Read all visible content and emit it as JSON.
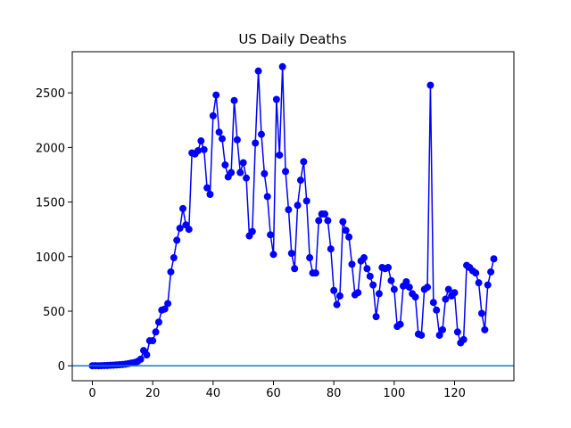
{
  "chart_data": {
    "type": "line",
    "title": "US Daily Deaths",
    "x": [
      0,
      1,
      2,
      3,
      4,
      5,
      6,
      7,
      8,
      9,
      10,
      11,
      12,
      13,
      14,
      15,
      16,
      17,
      18,
      19,
      20,
      21,
      22,
      23,
      24,
      25,
      26,
      27,
      28,
      29,
      30,
      31,
      32,
      33,
      34,
      35,
      36,
      37,
      38,
      39,
      40,
      41,
      42,
      43,
      44,
      45,
      46,
      47,
      48,
      49,
      50,
      51,
      52,
      53,
      54,
      55,
      56,
      57,
      58,
      59,
      60,
      61,
      62,
      63,
      64,
      65,
      66,
      67,
      68,
      69,
      70,
      71,
      72,
      73,
      74,
      75,
      76,
      77,
      78,
      79,
      80,
      81,
      82,
      83,
      84,
      85,
      86,
      87,
      88,
      89,
      90,
      91,
      92,
      93,
      94,
      95,
      96,
      97,
      98,
      99,
      100,
      101,
      102,
      103,
      104,
      105,
      106,
      107,
      108,
      109,
      110,
      111,
      112,
      113,
      114,
      115,
      116,
      117,
      118,
      119,
      120,
      121,
      122,
      123,
      124,
      125,
      126,
      127,
      128,
      129,
      130,
      131,
      132,
      133
    ],
    "values": [
      0,
      1,
      0,
      1,
      2,
      3,
      5,
      6,
      8,
      10,
      12,
      15,
      20,
      25,
      30,
      40,
      60,
      140,
      100,
      230,
      230,
      310,
      400,
      510,
      520,
      570,
      860,
      990,
      1150,
      1260,
      1440,
      1290,
      1250,
      1950,
      1940,
      1970,
      2060,
      1980,
      1630,
      1570,
      2290,
      2480,
      2140,
      2080,
      1840,
      1730,
      1770,
      2430,
      2070,
      1770,
      1860,
      1720,
      1190,
      1230,
      2040,
      2700,
      2120,
      1760,
      1550,
      1200,
      1020,
      2440,
      1930,
      2740,
      1780,
      1430,
      1030,
      890,
      1470,
      1700,
      1870,
      1510,
      990,
      850,
      850,
      1330,
      1390,
      1390,
      1330,
      1070,
      690,
      560,
      640,
      1320,
      1240,
      1180,
      930,
      650,
      670,
      960,
      990,
      890,
      820,
      740,
      450,
      660,
      900,
      890,
      900,
      780,
      700,
      360,
      380,
      730,
      770,
      720,
      660,
      630,
      290,
      280,
      700,
      720,
      2570,
      580,
      510,
      280,
      330,
      610,
      700,
      640,
      670,
      310,
      210,
      240,
      920,
      900,
      870,
      850,
      760,
      480,
      330,
      740,
      860,
      980
    ],
    "color": "#0000ff",
    "hline": {
      "y": 0,
      "color": "#1f77b4"
    },
    "xlim": [
      -6.65,
      139.65
    ],
    "xticks": [
      0,
      20,
      40,
      60,
      80,
      100,
      120
    ],
    "ylim": [
      -137,
      2877
    ],
    "yticks": [
      0,
      500,
      1000,
      1500,
      2000,
      2500
    ]
  }
}
